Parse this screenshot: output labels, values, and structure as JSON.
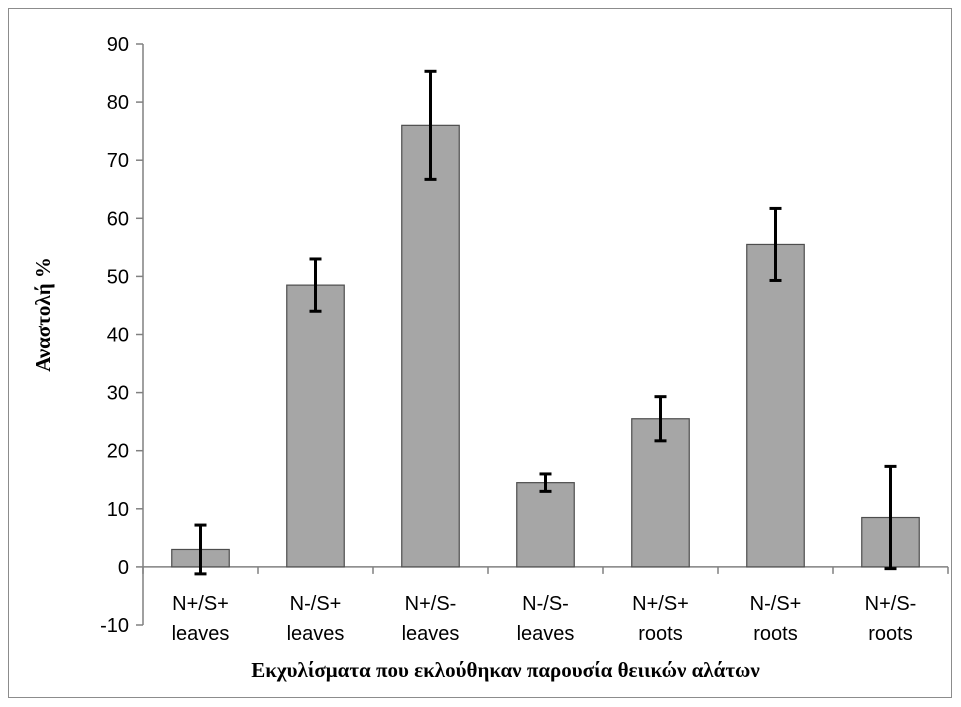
{
  "chart_data": {
    "type": "bar",
    "title": "",
    "xlabel": "Εκχυλίσματα που εκλούθηκαν παρουσία θειικών αλάτων",
    "ylabel": "Αναστολή %",
    "ylim": [
      -10,
      90
    ],
    "yticks": [
      -10,
      0,
      10,
      20,
      30,
      40,
      50,
      60,
      70,
      80,
      90
    ],
    "categories": [
      [
        "N+/S+",
        "leaves"
      ],
      [
        "N-/S+",
        "leaves"
      ],
      [
        "N+/S-",
        "leaves"
      ],
      [
        "N-/S-",
        "leaves"
      ],
      [
        "N+/S+",
        "roots"
      ],
      [
        "N-/S+",
        "roots"
      ],
      [
        "N+/S-",
        "roots"
      ]
    ],
    "values": [
      3,
      48.5,
      76,
      14.5,
      25.5,
      55.5,
      8.5
    ],
    "errors": [
      4.2,
      4.5,
      9.3,
      1.5,
      3.8,
      6.2,
      8.8
    ],
    "grid": false,
    "legend": "none",
    "bar_color": "#a6a6a6",
    "bar_edge_color": "#4d4d4d"
  }
}
